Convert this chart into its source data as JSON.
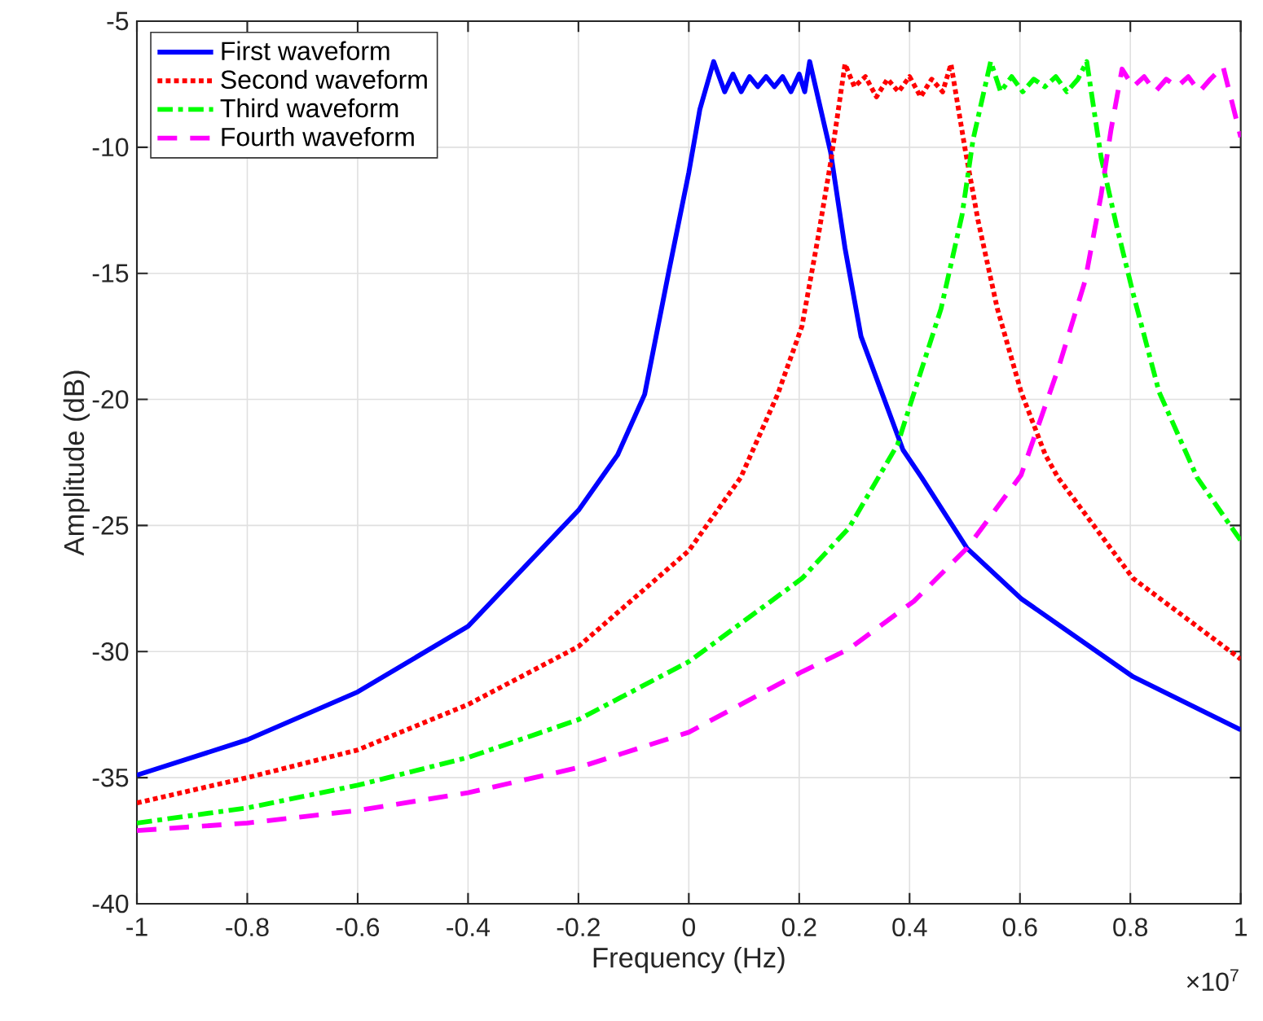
{
  "chart_data": {
    "type": "line",
    "xlabel": "Frequency (Hz)",
    "ylabel": "Amplitude (dB)",
    "annotations": [
      "×10$^{7}$"
    ],
    "xlim": [
      -1,
      1
    ],
    "ylim": [
      -40,
      -5
    ],
    "xticks": [
      -1,
      -0.8,
      -0.6,
      -0.4,
      -0.2,
      0,
      0.2,
      0.4,
      0.6,
      0.8,
      1
    ],
    "yticks": [
      -40,
      -35,
      -30,
      -25,
      -20,
      -15,
      -10,
      -5
    ],
    "grid": true,
    "legend": "top left",
    "marker": "none",
    "series": [
      {
        "name": "First waveform",
        "color": "#0000ff",
        "line_style": "solid",
        "x": [
          -1,
          -0.8,
          -0.6,
          -0.4,
          -0.2,
          -0.158,
          -0.129,
          -0.08,
          -0.036,
          0,
          0.02,
          0.045,
          0.065,
          0.08,
          0.095,
          0.11,
          0.125,
          0.14,
          0.155,
          0.17,
          0.185,
          0.2,
          0.21,
          0.219,
          0.257,
          0.283,
          0.312,
          0.388,
          0.422,
          0.504,
          0.602,
          0.805,
          1
        ],
        "values": [
          -34.9,
          -33.5,
          -31.6,
          -29.0,
          -24.4,
          -23.1,
          -22.2,
          -19.8,
          -14.9,
          -11.0,
          -8.5,
          -6.6,
          -7.8,
          -7.1,
          -7.8,
          -7.2,
          -7.6,
          -7.2,
          -7.6,
          -7.2,
          -7.8,
          -7.1,
          -7.8,
          -6.6,
          -10.2,
          -14.0,
          -17.5,
          -22.0,
          -23.1,
          -25.9,
          -27.9,
          -31.0,
          -33.1
        ]
      },
      {
        "name": "Second waveform",
        "color": "#ff0000",
        "line_style": "dotted",
        "x": [
          -1,
          -0.8,
          -0.6,
          -0.4,
          -0.2,
          0,
          0.094,
          0.161,
          0.205,
          0.234,
          0.257,
          0.283,
          0.3,
          0.32,
          0.34,
          0.36,
          0.38,
          0.4,
          0.42,
          0.44,
          0.46,
          0.475,
          0.5,
          0.524,
          0.559,
          0.602,
          0.646,
          0.669,
          0.805,
          1
        ],
        "values": [
          -36.0,
          -35.0,
          -33.9,
          -32.1,
          -29.8,
          -26.0,
          -23.1,
          -19.8,
          -17.1,
          -13.6,
          -10.6,
          -6.7,
          -7.6,
          -7.2,
          -8.0,
          -7.3,
          -7.8,
          -7.2,
          -8.0,
          -7.3,
          -7.8,
          -6.7,
          -10.0,
          -12.9,
          -16.4,
          -19.7,
          -22.2,
          -23.1,
          -27.1,
          -30.3
        ]
      },
      {
        "name": "Third waveform",
        "color": "#00ff00",
        "line_style": "dashdot",
        "x": [
          -1,
          -0.8,
          -0.6,
          -0.4,
          -0.2,
          0,
          0.205,
          0.29,
          0.378,
          0.457,
          0.495,
          0.515,
          0.547,
          0.565,
          0.585,
          0.605,
          0.625,
          0.645,
          0.665,
          0.685,
          0.705,
          0.721,
          0.747,
          0.776,
          0.805,
          0.852,
          0.921,
          1
        ],
        "values": [
          -36.8,
          -36.2,
          -35.3,
          -34.2,
          -32.7,
          -30.4,
          -27.1,
          -25.1,
          -21.8,
          -16.4,
          -12.7,
          -9.7,
          -6.6,
          -7.8,
          -7.2,
          -7.8,
          -7.3,
          -7.6,
          -7.2,
          -7.8,
          -7.3,
          -6.6,
          -10.4,
          -13.2,
          -15.8,
          -19.7,
          -23.1,
          -25.6
        ]
      },
      {
        "name": "Fourth waveform",
        "color": "#ff00ff",
        "line_style": "dashed",
        "x": [
          -1,
          -0.8,
          -0.6,
          -0.4,
          -0.2,
          0,
          0.205,
          0.29,
          0.408,
          0.504,
          0.602,
          0.669,
          0.718,
          0.747,
          0.765,
          0.785,
          0.805,
          0.825,
          0.845,
          0.865,
          0.885,
          0.905,
          0.925,
          0.945,
          0.968,
          1
        ],
        "values": [
          -37.1,
          -36.8,
          -36.3,
          -35.6,
          -34.6,
          -33.2,
          -30.8,
          -29.9,
          -28.0,
          -25.9,
          -23.0,
          -18.8,
          -15.3,
          -11.9,
          -9.3,
          -6.9,
          -7.6,
          -7.2,
          -7.8,
          -7.3,
          -7.6,
          -7.2,
          -7.8,
          -7.3,
          -6.8,
          -9.6
        ]
      }
    ]
  }
}
